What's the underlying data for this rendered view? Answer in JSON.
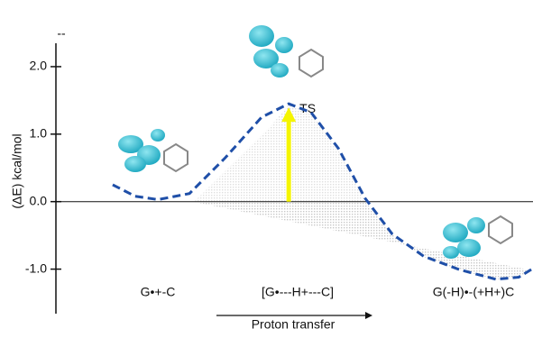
{
  "chart_data": {
    "type": "line",
    "y_label": "(ΔE) kcal/mol",
    "top_label": "--",
    "categories": [
      "G•+-C",
      "[G•---H+---C]",
      "G(-H)•-(+H+)C"
    ],
    "x": [
      11.9,
      16.6,
      21.4,
      28.0,
      35.5,
      43.1,
      48.8,
      53.5,
      59.2,
      64.8,
      70.5,
      77.1,
      84.7,
      92.2,
      97.0,
      100
    ],
    "series": [
      {
        "color": "#1f4fa8",
        "values": [
          0.25,
          0.08,
          0.03,
          0.12,
          0.65,
          1.25,
          1.45,
          1.32,
          0.79,
          0.05,
          -0.48,
          -0.81,
          -1.01,
          -1.15,
          -1.12,
          -0.99
        ]
      }
    ],
    "xlim": [
      0,
      100
    ],
    "ylim": [
      -1.66,
      2.48
    ],
    "yticks": [
      {
        "value": 2,
        "label": "2.0"
      },
      {
        "value": 1,
        "label": "1.0"
      },
      {
        "value": 0,
        "label": "0.0"
      },
      {
        "value": -1,
        "label": "-1.0"
      }
    ],
    "annotations": [
      "TS"
    ],
    "x_arrow_label": "Proton transfer",
    "arrow_color": "#f5f500"
  }
}
